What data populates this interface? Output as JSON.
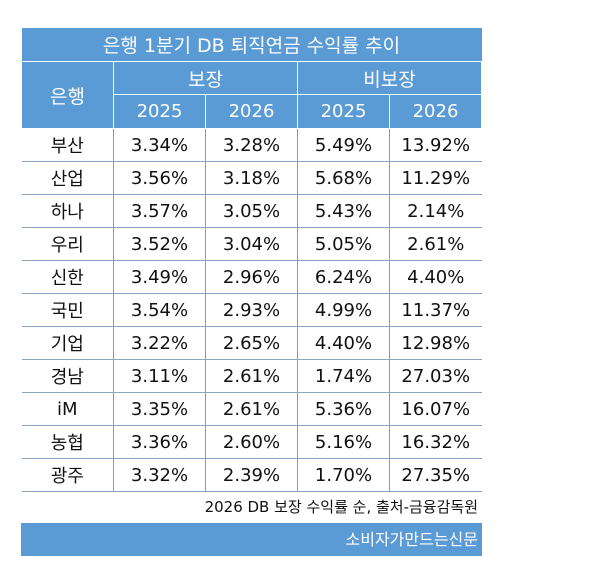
{
  "chart_data": {
    "type": "table",
    "title": "은행 1분기 DB 퇴직연금 수익률 추이",
    "row_header": "은행",
    "groups": [
      "보장",
      "비보장"
    ],
    "years": [
      "2025",
      "2026",
      "2025",
      "2026"
    ],
    "rows": [
      {
        "bank": "부산",
        "values": [
          "3.34%",
          "3.28%",
          "5.49%",
          "13.92%"
        ]
      },
      {
        "bank": "산업",
        "values": [
          "3.56%",
          "3.18%",
          "5.68%",
          "11.29%"
        ]
      },
      {
        "bank": "하나",
        "values": [
          "3.57%",
          "3.05%",
          "5.43%",
          "2.14%"
        ]
      },
      {
        "bank": "우리",
        "values": [
          "3.52%",
          "3.04%",
          "5.05%",
          "2.61%"
        ]
      },
      {
        "bank": "신한",
        "values": [
          "3.49%",
          "2.96%",
          "6.24%",
          "4.40%"
        ]
      },
      {
        "bank": "국민",
        "values": [
          "3.54%",
          "2.93%",
          "4.99%",
          "11.37%"
        ]
      },
      {
        "bank": "기업",
        "values": [
          "3.22%",
          "2.65%",
          "4.40%",
          "12.98%"
        ]
      },
      {
        "bank": "경남",
        "values": [
          "3.11%",
          "2.61%",
          "1.74%",
          "27.03%"
        ]
      },
      {
        "bank": "iM",
        "values": [
          "3.35%",
          "2.61%",
          "5.36%",
          "16.07%"
        ]
      },
      {
        "bank": "농협",
        "values": [
          "3.36%",
          "2.60%",
          "5.16%",
          "16.32%"
        ]
      },
      {
        "bank": "광주",
        "values": [
          "3.32%",
          "2.39%",
          "1.70%",
          "27.35%"
        ]
      }
    ],
    "note": "2026 DB 보장 수익률 순, 출처-금융감독원",
    "source": "소비자가만드는신문"
  },
  "colors": {
    "header": "#5b9bd5"
  }
}
